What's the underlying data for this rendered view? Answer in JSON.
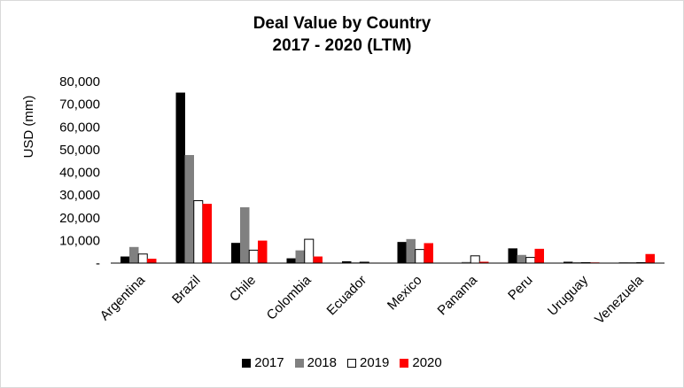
{
  "chart_data": {
    "type": "bar",
    "title": "Deal Value by Country",
    "subtitle": "2017 - 2020 (LTM)",
    "xlabel": "",
    "ylabel": "USD (mm)",
    "ylim": [
      0,
      80000
    ],
    "yticks": [
      0,
      10000,
      20000,
      30000,
      40000,
      50000,
      60000,
      70000,
      80000
    ],
    "ytick_labels": [
      "-",
      "10,000",
      "20,000",
      "30,000",
      "40,000",
      "50,000",
      "60,000",
      "70,000",
      "80,000"
    ],
    "categories": [
      "Argentina",
      "Brazil",
      "Chile",
      "Colombia",
      "Ecuador",
      "Mexico",
      "Panama",
      "Peru",
      "Uruguay",
      "Venezuela"
    ],
    "series": [
      {
        "name": "2017",
        "color": "#000000",
        "outline": "#000000",
        "values": [
          2800,
          75000,
          8800,
          2000,
          700,
          9200,
          0,
          6400,
          500,
          200
        ]
      },
      {
        "name": "2018",
        "color": "#808080",
        "outline": "#808080",
        "values": [
          7000,
          47500,
          24500,
          5500,
          200,
          10500,
          400,
          3500,
          300,
          300
        ]
      },
      {
        "name": "2019",
        "color": "#ffffff",
        "outline": "#000000",
        "values": [
          4000,
          27500,
          5700,
          10500,
          400,
          6000,
          3200,
          2500,
          200,
          200
        ]
      },
      {
        "name": "2020",
        "color": "#ff0000",
        "outline": "#ff0000",
        "values": [
          1800,
          26000,
          9800,
          2800,
          100,
          8700,
          500,
          6200,
          200,
          3900
        ]
      }
    ],
    "grid": false,
    "legend_position": "bottom"
  }
}
